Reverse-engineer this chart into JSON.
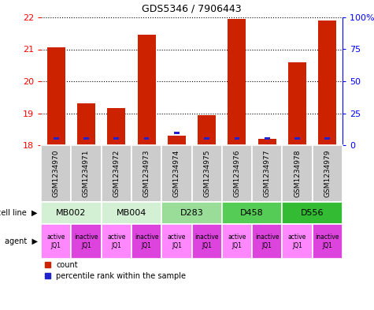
{
  "title": "GDS5346 / 7906443",
  "samples": [
    "GSM1234970",
    "GSM1234971",
    "GSM1234972",
    "GSM1234973",
    "GSM1234974",
    "GSM1234975",
    "GSM1234976",
    "GSM1234977",
    "GSM1234978",
    "GSM1234979"
  ],
  "red_values": [
    21.05,
    19.3,
    19.15,
    21.45,
    18.3,
    18.95,
    21.95,
    18.2,
    20.6,
    21.9
  ],
  "blue_positions": [
    18.2,
    18.2,
    18.2,
    18.2,
    18.38,
    18.2,
    18.2,
    18.2,
    18.2,
    18.2
  ],
  "ymin": 18,
  "ymax": 22,
  "yticks": [
    18,
    19,
    20,
    21,
    22
  ],
  "y2ticks": [
    0,
    25,
    50,
    75,
    100
  ],
  "cell_lines": [
    {
      "label": "MB002",
      "cols": [
        0,
        1
      ],
      "color": "#d4f0d4"
    },
    {
      "label": "MB004",
      "cols": [
        2,
        3
      ],
      "color": "#d4f0d4"
    },
    {
      "label": "D283",
      "cols": [
        4,
        5
      ],
      "color": "#99dd99"
    },
    {
      "label": "D458",
      "cols": [
        6,
        7
      ],
      "color": "#55cc55"
    },
    {
      "label": "D556",
      "cols": [
        8,
        9
      ],
      "color": "#33bb33"
    }
  ],
  "agents": [
    "active\nJQ1",
    "inactive\nJQ1",
    "active\nJQ1",
    "inactive\nJQ1",
    "active\nJQ1",
    "inactive\nJQ1",
    "active\nJQ1",
    "inactive\nJQ1",
    "active\nJQ1",
    "inactive\nJQ1"
  ],
  "agent_active_color": "#ff88ff",
  "agent_inactive_color": "#dd44dd",
  "bar_color_red": "#cc2200",
  "bar_color_blue": "#2222cc",
  "bar_width": 0.6,
  "sample_bg": "#cccccc",
  "fig_bg": "#ffffff",
  "fig_w": 4.75,
  "fig_h": 3.93,
  "dpi": 100
}
